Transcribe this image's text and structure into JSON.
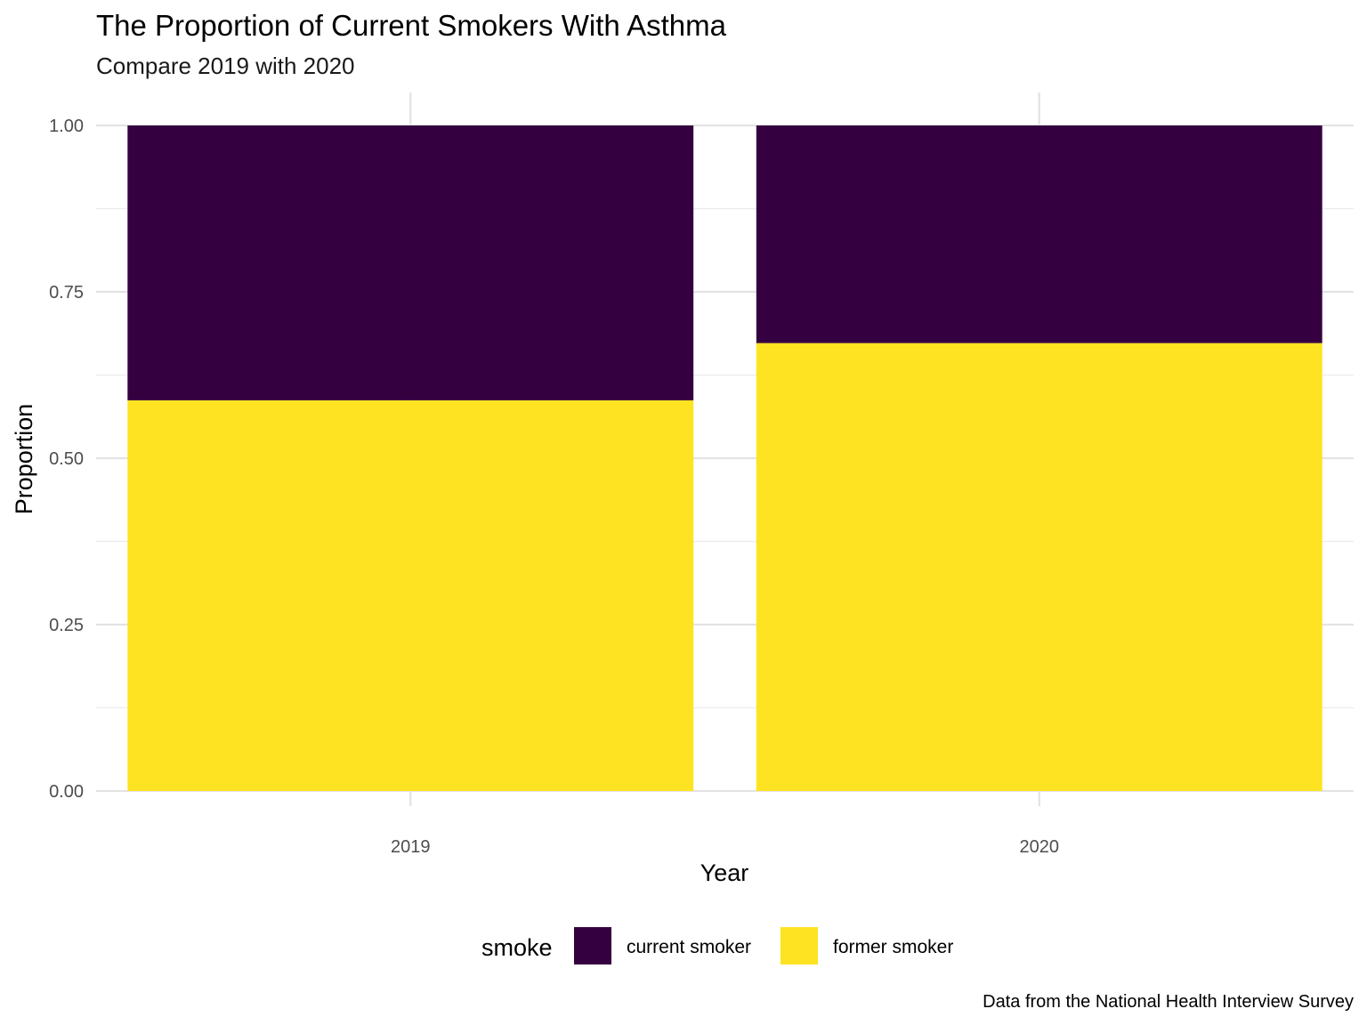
{
  "chart_data": {
    "type": "bar",
    "stacked": true,
    "title": "The Proportion of Current Smokers With Asthma",
    "subtitle": "Compare 2019 with 2020",
    "xlabel": "Year",
    "ylabel": "Proportion",
    "caption": "Data from the National Health Interview Survey",
    "categories": [
      "2019",
      "2020"
    ],
    "ylim": [
      0,
      1
    ],
    "yticks": [
      "0.00",
      "0.25",
      "0.50",
      "0.75",
      "1.00"
    ],
    "grid": true,
    "legend": {
      "title": "smoke",
      "position": "bottom"
    },
    "series": [
      {
        "name": "current smoker",
        "color": "#35003F",
        "values": [
          0.413,
          0.327
        ]
      },
      {
        "name": "former smoker",
        "color": "#FDE321",
        "values": [
          0.587,
          0.673
        ]
      }
    ]
  }
}
